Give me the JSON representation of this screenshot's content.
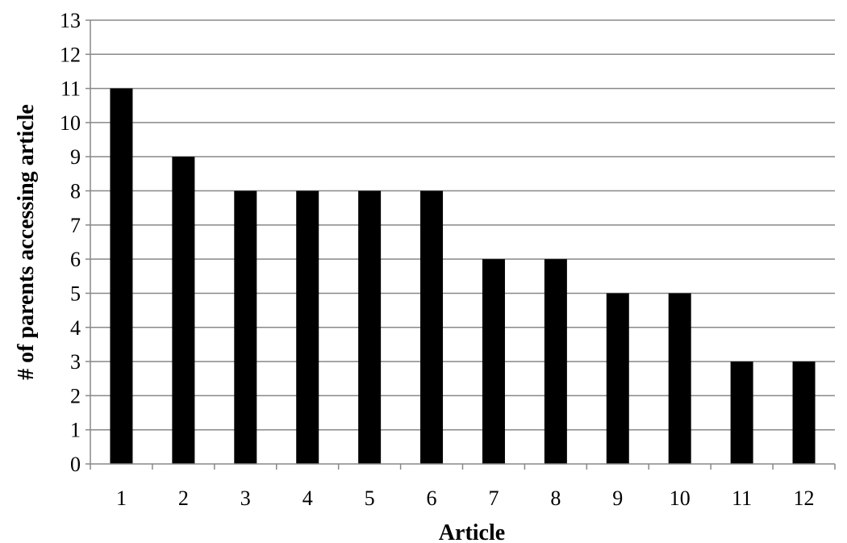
{
  "chart_data": {
    "type": "bar",
    "categories": [
      "1",
      "2",
      "3",
      "4",
      "5",
      "6",
      "7",
      "8",
      "9",
      "10",
      "11",
      "12"
    ],
    "values": [
      11,
      9,
      8,
      8,
      8,
      8,
      6,
      6,
      5,
      5,
      3,
      3
    ],
    "title": "",
    "xlabel": "Article",
    "ylabel": "# of parents accessing article",
    "ylim": [
      0,
      13
    ],
    "yticks": [
      "0",
      "1",
      "2",
      "3",
      "4",
      "5",
      "6",
      "7",
      "8",
      "9",
      "10",
      "11",
      "12",
      "13"
    ],
    "grid": true,
    "legend": "none",
    "colors": {
      "bar": "#000000",
      "grid": "#888888",
      "axis": "#888888"
    }
  }
}
